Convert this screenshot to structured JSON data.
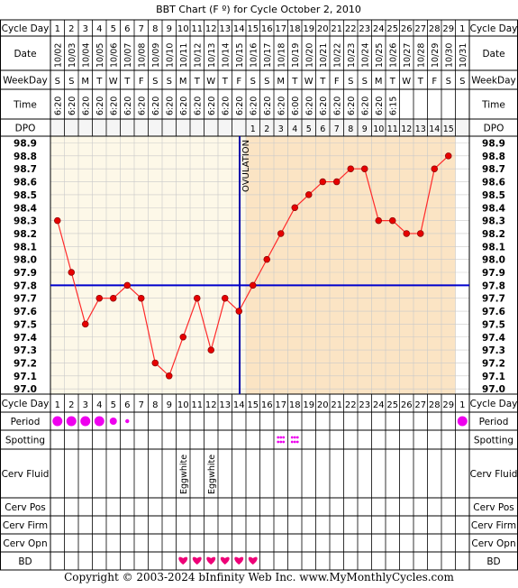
{
  "title": "BBT Chart (F º) for Cycle October 2, 2010",
  "copyright": "Copyright © 2003-2024 bInfinity Web Inc.    www.MyMonthlyCycles.com",
  "row_labels": {
    "cycle_day": "Cycle Day",
    "date": "Date",
    "weekday": "WeekDay",
    "time": "Time",
    "dpo": "DPO",
    "period": "Period",
    "spotting": "Spotting",
    "cerv_fluid": "Cerv Fluid",
    "cerv_pos": "Cerv Pos",
    "cerv_firm": "Cerv Firm",
    "cerv_opn": "Cerv Opn",
    "bd": "BD"
  },
  "colors": {
    "pre_ovulation_bg": "#fdf8e8",
    "post_ovulation_bg": "#fbe4c4",
    "grid": "#c9c9c9",
    "line": "#ff2a2a",
    "point": "#e60000",
    "coverline": "#0000cc",
    "ovulation_line": "#0000aa",
    "period": "#ee00ee",
    "bd": "#ee0077"
  },
  "chart_data": {
    "type": "line",
    "cycle_days": [
      "1",
      "2",
      "3",
      "4",
      "5",
      "6",
      "7",
      "8",
      "9",
      "10",
      "11",
      "12",
      "13",
      "14",
      "15",
      "16",
      "17",
      "18",
      "19",
      "20",
      "21",
      "22",
      "23",
      "24",
      "25",
      "26",
      "27",
      "28",
      "29",
      "1"
    ],
    "dates": [
      "10/02",
      "10/03",
      "10/04",
      "10/05",
      "10/06",
      "10/07",
      "10/08",
      "10/09",
      "10/10",
      "10/11",
      "10/12",
      "10/13",
      "10/14",
      "10/15",
      "10/16",
      "10/17",
      "10/18",
      "10/19",
      "10/20",
      "10/21",
      "10/22",
      "10/23",
      "10/24",
      "10/25",
      "10/26",
      "10/27",
      "10/28",
      "10/29",
      "10/30",
      "10/31"
    ],
    "weekdays": [
      "S",
      "S",
      "M",
      "T",
      "W",
      "T",
      "F",
      "S",
      "S",
      "M",
      "T",
      "W",
      "T",
      "F",
      "S",
      "S",
      "M",
      "T",
      "W",
      "T",
      "F",
      "S",
      "S",
      "M",
      "T",
      "W",
      "T",
      "F",
      "S",
      "S"
    ],
    "times": [
      "6:20",
      "6:20",
      "6:20",
      "6:20",
      "6:20",
      "6:20",
      "6:20",
      "6:20",
      "6:20",
      "6:20",
      "6:20",
      "6:20",
      "6:20",
      "6:20",
      "6:20",
      "6:20",
      "6:20",
      "6:00",
      "6:20",
      "6:20",
      "6:20",
      "6:20",
      "6:20",
      "6:20",
      "6:15",
      "",
      "",
      "",
      "",
      ""
    ],
    "dpo": [
      "",
      "",
      "",
      "",
      "",
      "",
      "",
      "",
      "",
      "",
      "",
      "",
      "",
      "",
      "1",
      "2",
      "3",
      "4",
      "5",
      "6",
      "7",
      "8",
      "9",
      "10",
      "11",
      "12",
      "13",
      "14",
      "15",
      ""
    ],
    "temperatures": [
      98.3,
      97.9,
      97.5,
      97.7,
      97.7,
      97.8,
      97.7,
      97.2,
      97.1,
      97.4,
      97.7,
      97.3,
      97.7,
      97.6,
      97.8,
      98.0,
      98.2,
      98.4,
      98.5,
      98.6,
      98.6,
      98.7,
      98.7,
      98.3,
      98.3,
      98.2,
      98.2,
      98.7,
      98.8,
      null
    ],
    "y_ticks": [
      "98.9",
      "98.8",
      "98.7",
      "98.6",
      "98.5",
      "98.4",
      "98.3",
      "98.2",
      "98.1",
      "98.0",
      "97.9",
      "97.8",
      "97.7",
      "97.6",
      "97.5",
      "97.4",
      "97.3",
      "97.2",
      "97.1",
      "97.0"
    ],
    "ylim": [
      97.0,
      98.9
    ],
    "coverline": 97.8,
    "ovulation_after_day_index": 13,
    "ovulation_label": "OVULATION",
    "period": [
      "heavy",
      "heavy",
      "heavy",
      "heavy",
      "medium",
      "light",
      "",
      "",
      "",
      "",
      "",
      "",
      "",
      "",
      "",
      "",
      "",
      "",
      "",
      "",
      "",
      "",
      "",
      "",
      "",
      "",
      "",
      "",
      "",
      "heavy"
    ],
    "spotting": [
      "",
      "",
      "",
      "",
      "",
      "",
      "",
      "",
      "",
      "",
      "",
      "",
      "",
      "",
      "",
      "",
      "x",
      "x",
      "",
      "",
      "",
      "",
      "",
      "",
      "",
      "",
      "",
      "",
      "",
      ""
    ],
    "cerv_fluid": [
      "",
      "",
      "",
      "",
      "",
      "",
      "",
      "",
      "",
      "Eggwhite",
      "",
      "Eggwhite",
      "",
      "",
      "",
      "",
      "",
      "",
      "",
      "",
      "",
      "",
      "",
      "",
      "",
      "",
      "",
      "",
      "",
      ""
    ],
    "bd": [
      "",
      "",
      "",
      "",
      "",
      "",
      "",
      "",
      "",
      "x",
      "x",
      "x",
      "x",
      "x",
      "x",
      "",
      "",
      "",
      "",
      "",
      "",
      "",
      "",
      "",
      "",
      "",
      "",
      "",
      "",
      ""
    ]
  }
}
